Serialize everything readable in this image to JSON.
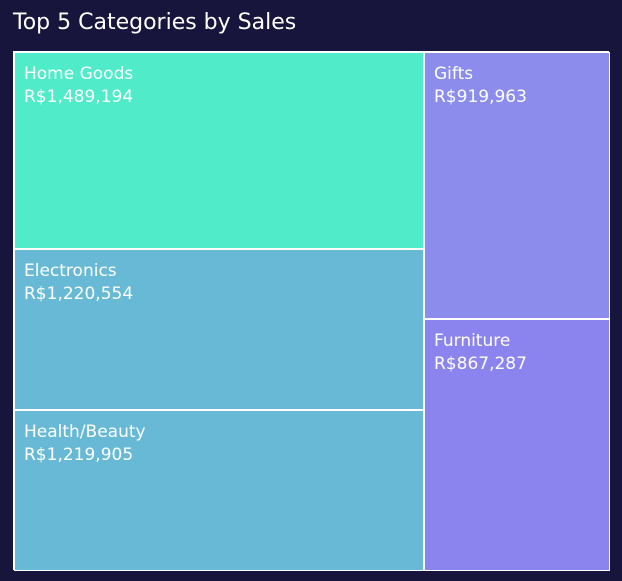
{
  "title": "Top 5 Categories by Sales",
  "chart_data": {
    "type": "treemap",
    "title": "Top 5 Categories by Sales",
    "currency_prefix": "R$",
    "categories": [
      "Home Goods",
      "Electronics",
      "Health/Beauty",
      "Gifts",
      "Furniture"
    ],
    "values": [
      1489194,
      1220554,
      1219905,
      919963,
      867287
    ],
    "items": [
      {
        "label": "Home Goods",
        "value": 1489194,
        "value_label": "R$1,489,194",
        "color": "#50ebc9"
      },
      {
        "label": "Electronics",
        "value": 1220554,
        "value_label": "R$1,220,554",
        "color": "#67b9d6"
      },
      {
        "label": "Health/Beauty",
        "value": 1219905,
        "value_label": "R$1,219,905",
        "color": "#67b9d6"
      },
      {
        "label": "Gifts",
        "value": 919963,
        "value_label": "R$919,963",
        "color": "#8b8ceb"
      },
      {
        "label": "Furniture",
        "value": 867287,
        "value_label": "R$867,287",
        "color": "#8b84ee"
      }
    ],
    "background_color": "#17153b"
  }
}
